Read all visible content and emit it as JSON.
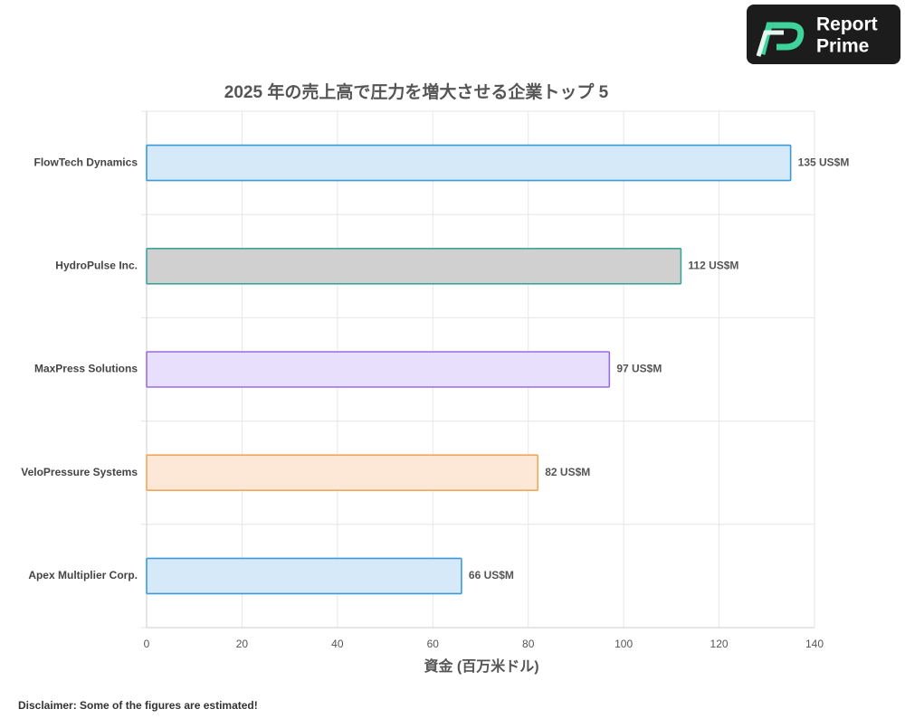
{
  "chart_data": {
    "type": "hbar",
    "title": "2025 年の売上高で圧力を増大させる企業トップ 5",
    "x_label": "資金 (百万米ドル)",
    "categories": [
      "FlowTech Dynamics",
      "HydroPulse Inc.",
      "MaxPress Solutions",
      "VeloPressure Systems",
      "Apex Multiplier Corp."
    ],
    "values": [
      135,
      112,
      97,
      82,
      66
    ],
    "value_labels": [
      "135 US$M",
      "112 US$M",
      "97 US$M",
      "82 US$M",
      "66 US$M"
    ],
    "colors": [
      "#d6e9f8",
      "#d0d0d0",
      "#e8dffc",
      "#fde8d7",
      "#d6e9f8"
    ],
    "edge_colors": [
      "#3a9ad9",
      "#3aa69b",
      "#9b6de0",
      "#f5a55a",
      "#3a9ad9"
    ],
    "xlim": [
      0,
      140
    ],
    "xticks": [
      0,
      20,
      40,
      60,
      80,
      100,
      120,
      140
    ],
    "grid": true
  },
  "logo": [
    "Report",
    "Prime"
  ],
  "disclaimer": "Disclaimer: Some of the figures are estimated!"
}
